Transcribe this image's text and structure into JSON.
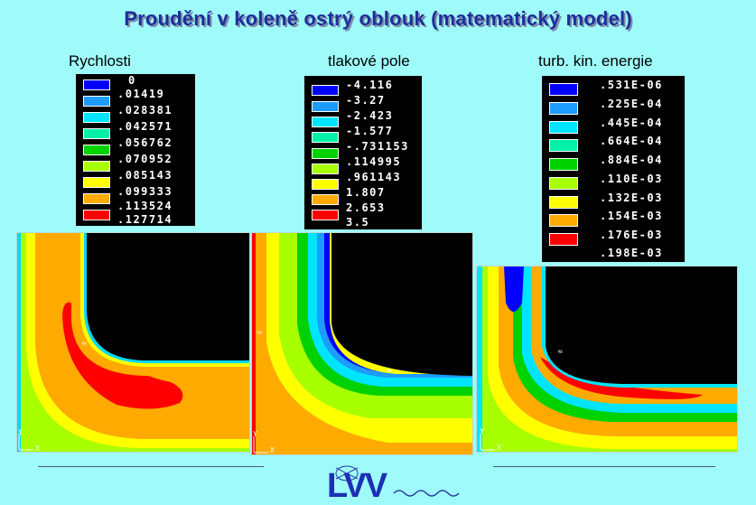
{
  "title": "Proudění v koleně ostrý oblouk (matematický model)",
  "panels": [
    {
      "label": "Rychlosti",
      "legend": {
        "header": "0",
        "values": [
          ".01419",
          ".028381",
          ".042571",
          ".056762",
          ".070952",
          ".085143",
          ".099333",
          ".113524",
          ".127714"
        ],
        "colors": [
          "#0000ff",
          "#1d9bff",
          "#00e5ff",
          "#00f0a8",
          "#00d200",
          "#a8ff00",
          "#ffff00",
          "#ffaa00",
          "#ff0000"
        ]
      },
      "field_icon": "velocity-contour-field"
    },
    {
      "label": "tlakové pole",
      "legend": {
        "values": [
          "-4.116",
          "-3.27",
          "-2.423",
          "-1.577",
          "-.731153",
          ".114995",
          ".961143",
          "1.807",
          "2.653",
          "3.5"
        ],
        "colors": [
          "#0000ff",
          "#1d9bff",
          "#00e5ff",
          "#00f0a8",
          "#00d200",
          "#a8ff00",
          "#ffff00",
          "#ffaa00",
          "#ff0000"
        ]
      },
      "field_icon": "pressure-contour-field"
    },
    {
      "label": "turb. kin. energie",
      "legend": {
        "values": [
          ".531E-06",
          ".225E-04",
          ".445E-04",
          ".664E-04",
          ".884E-04",
          ".110E-03",
          ".132E-03",
          ".154E-03",
          ".176E-03",
          ".198E-03"
        ],
        "colors": [
          "#0000ff",
          "#1d9bff",
          "#00e5ff",
          "#00f0a8",
          "#00d200",
          "#a8ff00",
          "#ffff00",
          "#ffaa00",
          "#ff0000"
        ]
      },
      "field_icon": "turbulence-contour-field"
    }
  ],
  "axis": {
    "x": "X",
    "y": "Y"
  },
  "logo": {
    "text": "LVV",
    "icon": "lvv-logo-icon"
  }
}
